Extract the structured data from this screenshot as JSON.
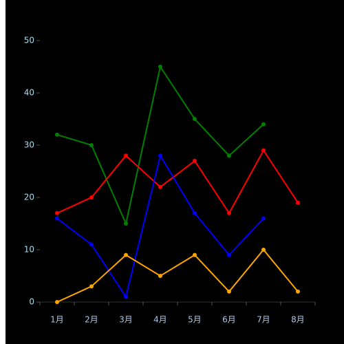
{
  "chart_data": {
    "type": "line",
    "categories": [
      "1月",
      "2月",
      "3月",
      "4月",
      "5月",
      "6月",
      "7月",
      "8月"
    ],
    "series": [
      {
        "color": "#008000",
        "values": [
          32,
          30,
          15,
          45,
          35,
          28,
          34,
          null
        ]
      },
      {
        "color": "#ff0000",
        "values": [
          17,
          20,
          28,
          22,
          27,
          17,
          29,
          19
        ]
      },
      {
        "color": "#0000ff",
        "values": [
          16,
          11,
          1,
          28,
          17,
          9,
          16,
          null
        ]
      },
      {
        "color": "#ffa500",
        "values": [
          0,
          3,
          9,
          5,
          9,
          2,
          10,
          2
        ]
      }
    ],
    "ylim": [
      0,
      50
    ],
    "yticks": [
      0,
      10,
      20,
      30,
      40,
      50
    ]
  }
}
